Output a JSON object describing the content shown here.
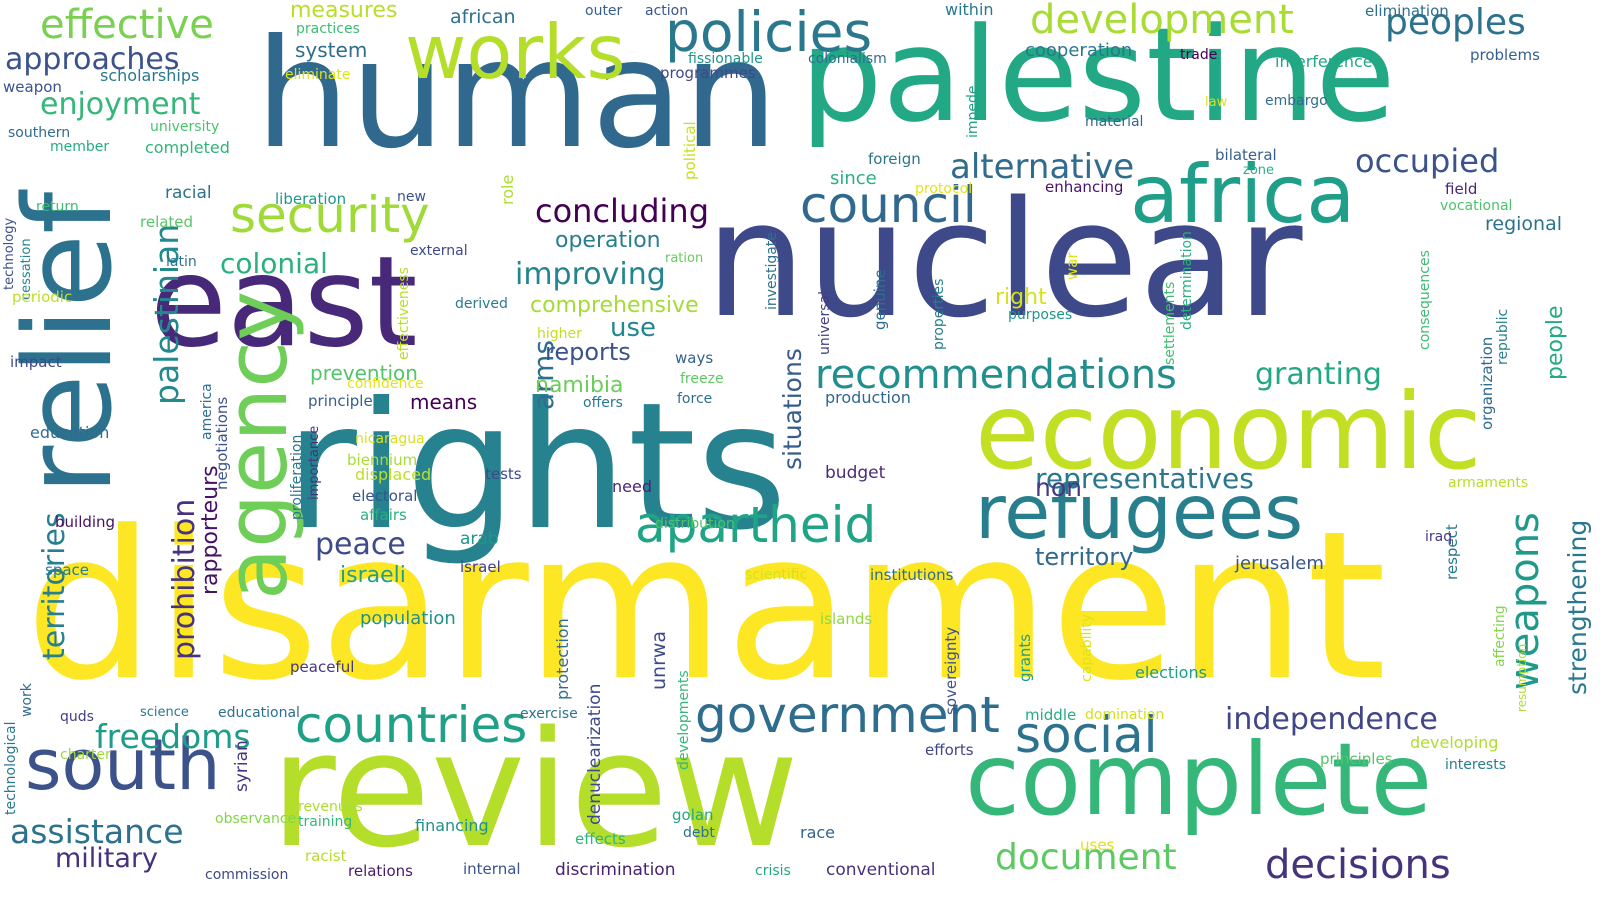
{
  "words": [
    {
      "text": "disarmament",
      "color": "#fde725"
    },
    {
      "text": "rights",
      "color": "#26828e"
    },
    {
      "text": "review",
      "color": "#b5de2b"
    },
    {
      "text": "nuclear",
      "color": "#3e4989"
    },
    {
      "text": "human",
      "color": "#31688e"
    },
    {
      "text": "palestine",
      "color": "#22a884"
    },
    {
      "text": "relief",
      "color": "#2c728e"
    },
    {
      "text": "east",
      "color": "#482878"
    },
    {
      "text": "economic",
      "color": "#c2df23"
    },
    {
      "text": "complete",
      "color": "#35b779"
    },
    {
      "text": "agency",
      "color": "#6ece58"
    },
    {
      "text": "works",
      "color": "#b5de2b"
    },
    {
      "text": "africa",
      "color": "#1f9e89"
    },
    {
      "text": "refugees",
      "color": "#277f8e"
    },
    {
      "text": "south",
      "color": "#3b528b"
    },
    {
      "text": "policies",
      "color": "#2a788e"
    },
    {
      "text": "security",
      "color": "#a0da39"
    },
    {
      "text": "apartheid",
      "color": "#20a486"
    },
    {
      "text": "council",
      "color": "#31688e"
    },
    {
      "text": "government",
      "color": "#2e6d8e"
    },
    {
      "text": "countries",
      "color": "#1fa187"
    },
    {
      "text": "social",
      "color": "#2c728e"
    },
    {
      "text": "development",
      "color": "#a8db34"
    },
    {
      "text": "recommendations",
      "color": "#218f8d"
    },
    {
      "text": "weapons",
      "color": "#1f9a8a"
    },
    {
      "text": "decisions",
      "color": "#46337e"
    },
    {
      "text": "document",
      "color": "#5ec962"
    },
    {
      "text": "effective",
      "color": "#7ad151"
    },
    {
      "text": "assistance",
      "color": "#2c728e"
    },
    {
      "text": "freedoms",
      "color": "#1e9b8a"
    },
    {
      "text": "palestinian",
      "color": "#23898e"
    },
    {
      "text": "alternative",
      "color": "#2f6c8e"
    },
    {
      "text": "concluding",
      "color": "#440154"
    },
    {
      "text": "peoples",
      "color": "#2c728e"
    },
    {
      "text": "occupied",
      "color": "#3b528b"
    },
    {
      "text": "approaches",
      "color": "#3b528b"
    },
    {
      "text": "enjoyment",
      "color": "#35b779"
    },
    {
      "text": "territories",
      "color": "#277f8e"
    },
    {
      "text": "prohibition",
      "color": "#46327e"
    },
    {
      "text": "independence",
      "color": "#404688"
    },
    {
      "text": "representatives",
      "color": "#2a788e"
    },
    {
      "text": "arms",
      "color": "#2e6e8e"
    },
    {
      "text": "peace",
      "color": "#3e4a89"
    },
    {
      "text": "improving",
      "color": "#25848e"
    },
    {
      "text": "granting",
      "color": "#22a884"
    },
    {
      "text": "military",
      "color": "#46327e"
    },
    {
      "text": "strengthening",
      "color": "#29798e"
    },
    {
      "text": "colonial",
      "color": "#2ab07f"
    },
    {
      "text": "non",
      "color": "#443a83"
    },
    {
      "text": "situations",
      "color": "#365c8d"
    },
    {
      "text": "rapporteurs",
      "color": "#471164"
    },
    {
      "text": "people",
      "color": "#25ab82"
    },
    {
      "text": "territory",
      "color": "#31688e"
    },
    {
      "text": "use",
      "color": "#24868e"
    },
    {
      "text": "reports",
      "color": "#3b528b"
    },
    {
      "text": "israeli",
      "color": "#1fa088"
    },
    {
      "text": "namibia",
      "color": "#6ccd5a"
    },
    {
      "text": "operation",
      "color": "#287d8e"
    },
    {
      "text": "comprehensive",
      "color": "#a5db36"
    },
    {
      "text": "prevention",
      "color": "#52c569"
    },
    {
      "text": "measures",
      "color": "#b8de29"
    },
    {
      "text": "system",
      "color": "#2f6c8e"
    },
    {
      "text": "african",
      "color": "#2d718e"
    },
    {
      "text": "cooperation",
      "color": "#2a788e"
    },
    {
      "text": "jerusalem",
      "color": "#39568c"
    },
    {
      "text": "means",
      "color": "#440154"
    },
    {
      "text": "population",
      "color": "#21918c"
    },
    {
      "text": "unrwa",
      "color": "#3e4989"
    },
    {
      "text": "since",
      "color": "#2ab07f"
    },
    {
      "text": "regional",
      "color": "#2c728e"
    },
    {
      "text": "right",
      "color": "#d5e21a"
    },
    {
      "text": "scholarships",
      "color": "#2a788e"
    },
    {
      "text": "completed",
      "color": "#2fb47c"
    },
    {
      "text": "university",
      "color": "#4ac16d"
    },
    {
      "text": "racial",
      "color": "#2c728e"
    },
    {
      "text": "related",
      "color": "#56c667"
    },
    {
      "text": "liberation",
      "color": "#1f968b"
    },
    {
      "text": "programmes",
      "color": "#3e4989"
    },
    {
      "text": "colonialism",
      "color": "#2e6f8e"
    },
    {
      "text": "trade",
      "color": "#440154"
    },
    {
      "text": "interference",
      "color": "#21a685"
    },
    {
      "text": "problems",
      "color": "#355f8d"
    },
    {
      "text": "elimination",
      "color": "#2e6e8e"
    },
    {
      "text": "foreign",
      "color": "#2a768e"
    },
    {
      "text": "bilateral",
      "color": "#355f8d"
    },
    {
      "text": "field",
      "color": "#482677"
    },
    {
      "text": "vocational",
      "color": "#4cc26c"
    },
    {
      "text": "education",
      "color": "#2f6c8e"
    },
    {
      "text": "building",
      "color": "#471164"
    },
    {
      "text": "space",
      "color": "#287c8e"
    },
    {
      "text": "electoral",
      "color": "#3b528b"
    },
    {
      "text": "affairs",
      "color": "#2ab07f"
    },
    {
      "text": "displaced",
      "color": "#bddf26"
    },
    {
      "text": "biennium",
      "color": "#a8db34"
    },
    {
      "text": "nicaragua",
      "color": "#d8e219"
    },
    {
      "text": "confidence",
      "color": "#e5e419"
    },
    {
      "text": "principle",
      "color": "#355f8d"
    },
    {
      "text": "production",
      "color": "#31688e"
    },
    {
      "text": "budget",
      "color": "#472c7a"
    },
    {
      "text": "tests",
      "color": "#3e4989"
    },
    {
      "text": "arab",
      "color": "#1f968b"
    },
    {
      "text": "israel",
      "color": "#443a83"
    },
    {
      "text": "need",
      "color": "#482475"
    },
    {
      "text": "distribution",
      "color": "#4ec36b"
    },
    {
      "text": "scientific",
      "color": "#d2e21b"
    },
    {
      "text": "institutions",
      "color": "#2e6e8e"
    },
    {
      "text": "islands",
      "color": "#90d743"
    },
    {
      "text": "elections",
      "color": "#1f9e89"
    },
    {
      "text": "middle",
      "color": "#25ac82"
    },
    {
      "text": "domination",
      "color": "#d2e21b"
    },
    {
      "text": "efforts",
      "color": "#404688"
    },
    {
      "text": "developing",
      "color": "#b0dd2f"
    },
    {
      "text": "principles",
      "color": "#54c568"
    },
    {
      "text": "interests",
      "color": "#287c8e"
    },
    {
      "text": "golan",
      "color": "#22a884"
    },
    {
      "text": "debt",
      "color": "#2d708e"
    },
    {
      "text": "race",
      "color": "#33638d"
    },
    {
      "text": "financing",
      "color": "#21918c"
    },
    {
      "text": "effects",
      "color": "#2fb47c"
    },
    {
      "text": "crisis",
      "color": "#22a884"
    },
    {
      "text": "conventional",
      "color": "#46327e"
    },
    {
      "text": "uses",
      "color": "#dde318"
    },
    {
      "text": "internal",
      "color": "#3b528b"
    },
    {
      "text": "discrimination",
      "color": "#482173"
    },
    {
      "text": "relations",
      "color": "#481a6c"
    },
    {
      "text": "racist",
      "color": "#b5de2b"
    },
    {
      "text": "commission",
      "color": "#3e4989"
    },
    {
      "text": "training",
      "color": "#35b779"
    },
    {
      "text": "revenues",
      "color": "#addc30"
    },
    {
      "text": "observance",
      "color": "#84d44b"
    },
    {
      "text": "syrian",
      "color": "#463480"
    },
    {
      "text": "charter",
      "color": "#a0da39"
    },
    {
      "text": "quds",
      "color": "#433e85"
    },
    {
      "text": "science",
      "color": "#2a788e"
    },
    {
      "text": "educational",
      "color": "#2d708e"
    },
    {
      "text": "exercise",
      "color": "#2c728e"
    },
    {
      "text": "work",
      "color": "#2f6c8e"
    },
    {
      "text": "peaceful",
      "color": "#453882"
    },
    {
      "text": "technological",
      "color": "#2a788e"
    },
    {
      "text": "technology",
      "color": "#3b528b"
    },
    {
      "text": "cessation",
      "color": "#25848e"
    },
    {
      "text": "return",
      "color": "#3dbc74"
    },
    {
      "text": "periodic",
      "color": "#bddf26"
    },
    {
      "text": "impact",
      "color": "#3e4989"
    },
    {
      "text": "southern",
      "color": "#2f6c8e"
    },
    {
      "text": "member",
      "color": "#25ac82"
    },
    {
      "text": "weapon",
      "color": "#3b528b"
    },
    {
      "text": "eliminate",
      "color": "#dde318"
    },
    {
      "text": "practices",
      "color": "#3dbc74"
    },
    {
      "text": "outer",
      "color": "#355f8d"
    },
    {
      "text": "action",
      "color": "#39568c"
    },
    {
      "text": "within",
      "color": "#2a788e"
    },
    {
      "text": "fissionable",
      "color": "#1f968b"
    },
    {
      "text": "law",
      "color": "#d8e219"
    },
    {
      "text": "embargo",
      "color": "#2e6e8e"
    },
    {
      "text": "material",
      "color": "#31688e"
    },
    {
      "text": "impede",
      "color": "#1fa187"
    },
    {
      "text": "protocol",
      "color": "#e5e419"
    },
    {
      "text": "enhancing",
      "color": "#481467"
    },
    {
      "text": "zone",
      "color": "#2ab07f"
    },
    {
      "text": "new",
      "color": "#3b528b"
    },
    {
      "text": "external",
      "color": "#3e4989"
    },
    {
      "text": "latin",
      "color": "#2c728e"
    },
    {
      "text": "ration",
      "color": "#66cb5d"
    },
    {
      "text": "derived",
      "color": "#287c8e"
    },
    {
      "text": "higher",
      "color": "#c2df23"
    },
    {
      "text": "purposes",
      "color": "#1f968b"
    },
    {
      "text": "ways",
      "color": "#33638d"
    },
    {
      "text": "freeze",
      "color": "#5ec962"
    },
    {
      "text": "force",
      "color": "#2e6e8e"
    },
    {
      "text": "offers",
      "color": "#29798e"
    },
    {
      "text": "war",
      "color": "#dde318"
    },
    {
      "text": "political",
      "color": "#c8e020"
    },
    {
      "text": "role",
      "color": "#addc30"
    },
    {
      "text": "effectiveness",
      "color": "#b8de29"
    },
    {
      "text": "proliferation",
      "color": "#2a768e"
    },
    {
      "text": "importance",
      "color": "#46327e"
    },
    {
      "text": "negotiations",
      "color": "#3b528b"
    },
    {
      "text": "america",
      "color": "#2e6e8e"
    },
    {
      "text": "investigate",
      "color": "#2c728e"
    },
    {
      "text": "universal",
      "color": "#433e85"
    },
    {
      "text": "genuine",
      "color": "#2f6c8e"
    },
    {
      "text": "properties",
      "color": "#277f8e"
    },
    {
      "text": "settlements",
      "color": "#40bd72"
    },
    {
      "text": "determination",
      "color": "#2ab07f"
    },
    {
      "text": "consequences",
      "color": "#3dbc74"
    },
    {
      "text": "organization",
      "color": "#2f6c8e"
    },
    {
      "text": "republic",
      "color": "#25848e"
    },
    {
      "text": "armaments",
      "color": "#b8de29"
    },
    {
      "text": "respect",
      "color": "#2a788e"
    },
    {
      "text": "iraq",
      "color": "#443a83"
    },
    {
      "text": "affecting",
      "color": "#84d44b"
    },
    {
      "text": "resumption",
      "color": "#b0dd2f"
    },
    {
      "text": "sovereignty",
      "color": "#3b528b"
    },
    {
      "text": "grants",
      "color": "#1f9e89"
    },
    {
      "text": "capability",
      "color": "#dde318"
    },
    {
      "text": "protection",
      "color": "#2f6c8e"
    },
    {
      "text": "denuclearization",
      "color": "#3e4989"
    },
    {
      "text": "developments",
      "color": "#35b779"
    }
  ]
}
